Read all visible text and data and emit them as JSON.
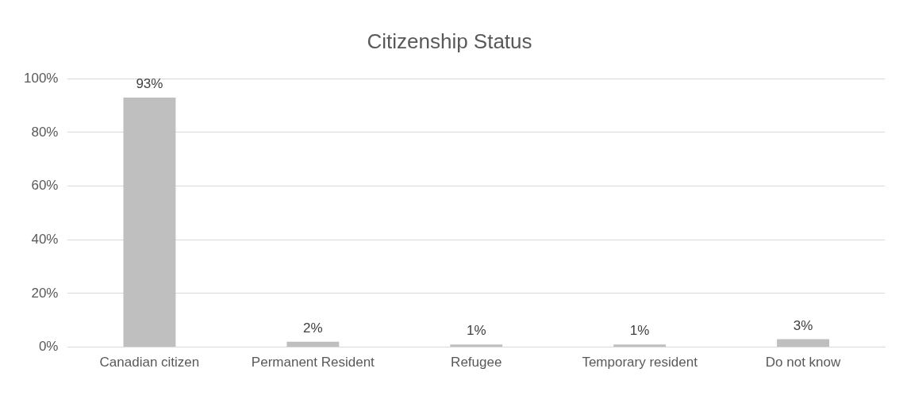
{
  "chart_data": {
    "type": "bar",
    "title": "Citizenship Status",
    "categories": [
      "Canadian citizen",
      "Permanent Resident",
      "Refugee",
      "Temporary resident",
      "Do not know"
    ],
    "values": [
      93,
      2,
      1,
      1,
      3
    ],
    "value_labels": [
      "93%",
      "2%",
      "1%",
      "1%",
      "3%"
    ],
    "color": "#bfbfbf",
    "ylim": [
      0,
      100
    ],
    "yticks": [
      {
        "value": 0,
        "label": "0%"
      },
      {
        "value": 20,
        "label": "20%"
      },
      {
        "value": 40,
        "label": "40%"
      },
      {
        "value": 60,
        "label": "60%"
      },
      {
        "value": 80,
        "label": "80%"
      },
      {
        "value": 100,
        "label": "100%"
      }
    ],
    "grid": "y",
    "legend": false
  }
}
